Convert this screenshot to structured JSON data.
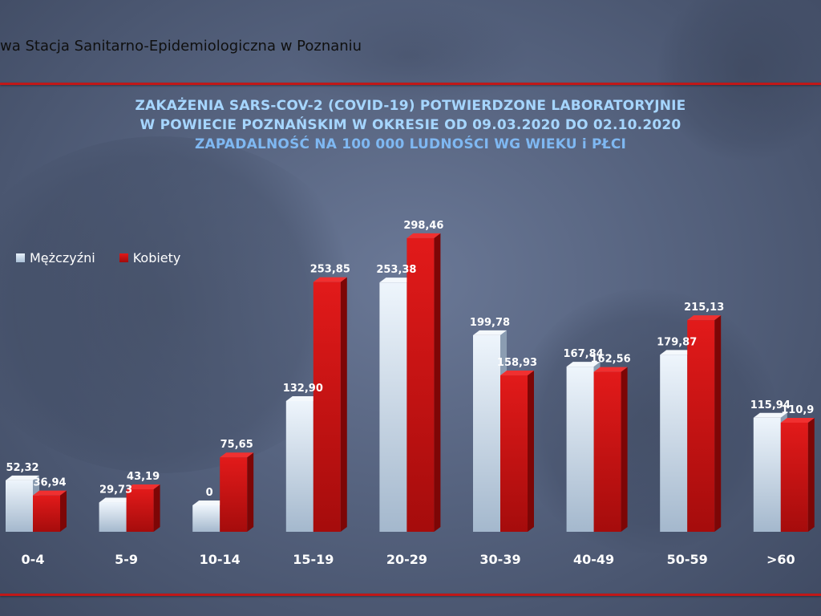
{
  "header": {
    "org_text": "wa Stacja Sanitarno-Epidemiologiczna w Poznaniu"
  },
  "title": {
    "line1": "ZAKAŻENIA SARS-COV-2 (COVID-19) POTWIERDZONE LABORATORYJNIE",
    "line2": "W POWIECIE POZNAŃSKIM W OKRESIE OD 09.03.2020 DO 02.10.2020",
    "line3": "ZAPADALNOŚĆ NA 100 000 LUDNOŚCI WG WIEKU i PŁCI"
  },
  "colors": {
    "men": "#c7d8ea",
    "women": "#d21414",
    "title": "#a6d6ff",
    "subtitle": "#7fb8f2",
    "accent_line": "#c01818"
  },
  "chart_data": {
    "type": "bar",
    "categories": [
      "0-4",
      "5-9",
      "10-14",
      "15-19",
      "20-29",
      "30-39",
      "40-49",
      "50-59",
      ">60"
    ],
    "series": [
      {
        "name": "Mężczyźni",
        "values": [
          52.32,
          29.73,
          0,
          132.9,
          253.38,
          199.78,
          167.84,
          179.87,
          115.94
        ],
        "labels": [
          "52,32",
          "29,73",
          "0",
          "132,90",
          "253,38",
          "199,78",
          "167,84",
          "179,87",
          "115,94"
        ]
      },
      {
        "name": "Kobiety",
        "values": [
          36.94,
          43.19,
          75.65,
          253.85,
          298.46,
          158.93,
          162.56,
          215.13,
          110.9
        ],
        "labels": [
          "36,94",
          "43,19",
          "75,65",
          "253,85",
          "298,46",
          "158,93",
          "162,56",
          "215,13",
          "110,9"
        ]
      }
    ],
    "legend_position": "top-left",
    "grid": false,
    "ylim": [
      0,
      300
    ]
  }
}
